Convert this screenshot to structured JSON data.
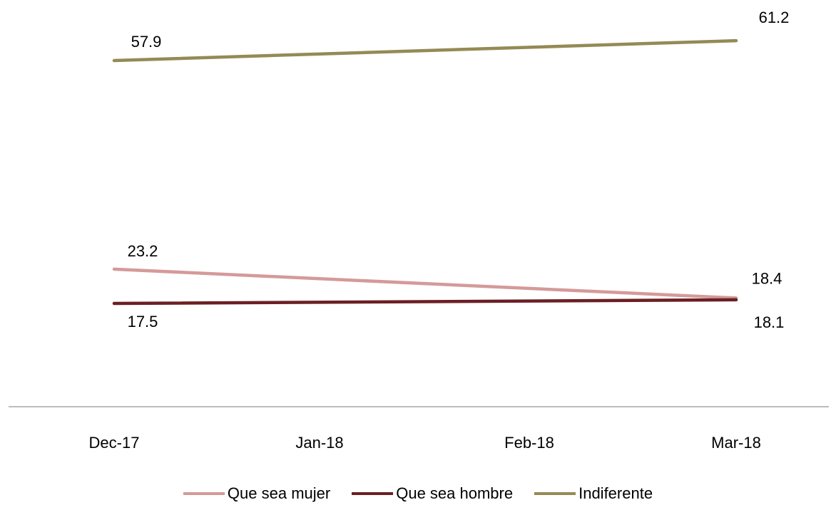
{
  "chart_data": {
    "type": "line",
    "categories": [
      "Dec-17",
      "Jan-18",
      "Feb-18",
      "Mar-18"
    ],
    "series": [
      {
        "name": "Que sea mujer",
        "color": "#D49A99",
        "values": [
          23.2,
          null,
          null,
          18.4
        ]
      },
      {
        "name": "Que sea hombre",
        "color": "#6B1F24",
        "values": [
          17.5,
          null,
          null,
          18.1
        ]
      },
      {
        "name": "Indiferente",
        "color": "#948A54",
        "values": [
          57.9,
          null,
          null,
          61.2
        ]
      }
    ],
    "data_labels": [
      {
        "series": "Que sea mujer",
        "category": "Dec-17",
        "text": "23.2"
      },
      {
        "series": "Que sea mujer",
        "category": "Mar-18",
        "text": "18.4"
      },
      {
        "series": "Que sea hombre",
        "category": "Dec-17",
        "text": "17.5"
      },
      {
        "series": "Que sea hombre",
        "category": "Mar-18",
        "text": "18.1"
      },
      {
        "series": "Indiferente",
        "category": "Dec-17",
        "text": "57.9"
      },
      {
        "series": "Indiferente",
        "category": "Mar-18",
        "text": "61.2"
      }
    ],
    "title": "",
    "xlabel": "",
    "ylabel": "",
    "ylim": [
      0,
      70
    ],
    "grid": false,
    "legend_position": "bottom"
  },
  "legend": {
    "items": [
      {
        "label": "Que sea mujer",
        "color": "#D49A99"
      },
      {
        "label": "Que sea hombre",
        "color": "#6B1F24"
      },
      {
        "label": "Indiferente",
        "color": "#948A54"
      }
    ]
  }
}
